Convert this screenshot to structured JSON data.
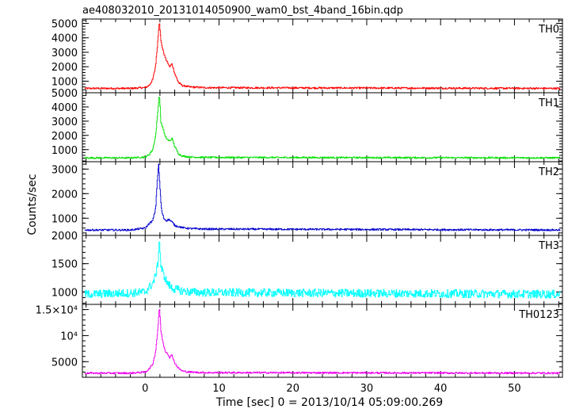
{
  "title": "ae408032010_20131014050900_wam0_bst_4band_16bin.qdp",
  "xlabel": "Time [sec] 0 = 2013/10/14 05:09:00.269",
  "ylabel": "Counts/sec",
  "chart_data": {
    "type": "line",
    "title": "ae408032010_20131014050900_wam0_bst_4band_16bin.qdp",
    "xlabel": "Time [sec] 0 = 2013/10/14 05:09:00.269",
    "ylabel": "Counts/sec",
    "xlim": [
      -8.5,
      56.5
    ],
    "x_ticks": [
      "0",
      "10",
      "20",
      "30",
      "40",
      "50"
    ],
    "grid": false,
    "panels": [
      {
        "name": "TH0",
        "color": "#ff0000",
        "ylim": [
          200,
          5300
        ],
        "yticks": [
          {
            "v": 1000,
            "label": "1000"
          },
          {
            "v": 2000,
            "label": "2000"
          },
          {
            "v": 3000,
            "label": "3000"
          },
          {
            "v": 4000,
            "label": "4000"
          },
          {
            "v": 5000,
            "label": "5000"
          }
        ],
        "x": [
          -8,
          -2,
          0,
          0.5,
          1,
          1.4,
          1.7,
          1.9,
          2.1,
          2.4,
          2.7,
          3.0,
          3.3,
          3.6,
          4.0,
          4.5,
          5,
          6,
          8,
          56
        ],
        "values": [
          500,
          500,
          560,
          700,
          1100,
          2100,
          3900,
          5200,
          3800,
          3100,
          2600,
          2300,
          2000,
          2200,
          1500,
          900,
          700,
          600,
          550,
          500
        ]
      },
      {
        "name": "TH1",
        "color": "#00e000",
        "ylim": [
          150,
          5000
        ],
        "yticks": [
          {
            "v": 1000,
            "label": "1000"
          },
          {
            "v": 2000,
            "label": "2000"
          },
          {
            "v": 3000,
            "label": "3000"
          },
          {
            "v": 4000,
            "label": "4000"
          },
          {
            "v": 5000,
            "label": "5000"
          }
        ],
        "x": [
          -8,
          -2,
          0,
          0.5,
          1,
          1.4,
          1.7,
          1.9,
          2.1,
          2.4,
          2.7,
          3.0,
          3.3,
          3.6,
          4.0,
          4.5,
          5,
          6,
          8,
          56
        ],
        "values": [
          420,
          420,
          480,
          650,
          1000,
          2000,
          3800,
          4900,
          2900,
          2500,
          1900,
          1700,
          1600,
          1800,
          1200,
          700,
          550,
          480,
          450,
          420
        ]
      },
      {
        "name": "TH2",
        "color": "#0000cc",
        "ylim": [
          300,
          3300
        ],
        "yticks": [
          {
            "v": 1000,
            "label": "1000"
          },
          {
            "v": 2000,
            "label": "2000"
          },
          {
            "v": 3000,
            "label": "3000"
          }
        ],
        "x": [
          -8,
          -2,
          0,
          0.5,
          1,
          1.4,
          1.6,
          1.8,
          2.0,
          2.2,
          2.5,
          2.8,
          3.2,
          3.6,
          4.0,
          5,
          6,
          8,
          56
        ],
        "values": [
          520,
          520,
          600,
          780,
          900,
          1400,
          2500,
          3200,
          2100,
          1300,
          1000,
          900,
          950,
          850,
          700,
          620,
          580,
          560,
          520
        ]
      },
      {
        "name": "TH3",
        "color": "#00ffff",
        "ylim": [
          780,
          2000
        ],
        "yticks": [
          {
            "v": 1000,
            "label": "1000"
          },
          {
            "v": 1500,
            "label": "1500"
          },
          {
            "v": 2000,
            "label": "2000"
          }
        ],
        "x": [
          -8,
          -2,
          0,
          0.5,
          1,
          1.4,
          1.7,
          1.9,
          2.1,
          2.5,
          3.0,
          3.5,
          4.0,
          5,
          6,
          8,
          56
        ],
        "values": [
          960,
          980,
          1000,
          1080,
          1150,
          1300,
          1500,
          1950,
          1450,
          1300,
          1150,
          1080,
          1050,
          1020,
          1000,
          990,
          960
        ]
      },
      {
        "name": "TH0123",
        "color": "#ee00ee",
        "ylim": [
          2000,
          16000
        ],
        "yticks": [
          {
            "v": 5000,
            "label": "5000"
          },
          {
            "v": 10000,
            "label": "10⁴"
          },
          {
            "v": 15000,
            "label": "1.5×10⁴"
          }
        ],
        "x": [
          -8,
          -2,
          0,
          0.5,
          1,
          1.4,
          1.7,
          1.9,
          2.1,
          2.4,
          2.7,
          3.0,
          3.3,
          3.6,
          4.0,
          4.5,
          5,
          6,
          8,
          56
        ],
        "values": [
          2800,
          2800,
          3000,
          3600,
          4500,
          7000,
          11500,
          15600,
          11000,
          8500,
          7000,
          6600,
          5800,
          6300,
          4700,
          3700,
          3200,
          3000,
          2900,
          2800
        ]
      }
    ]
  }
}
